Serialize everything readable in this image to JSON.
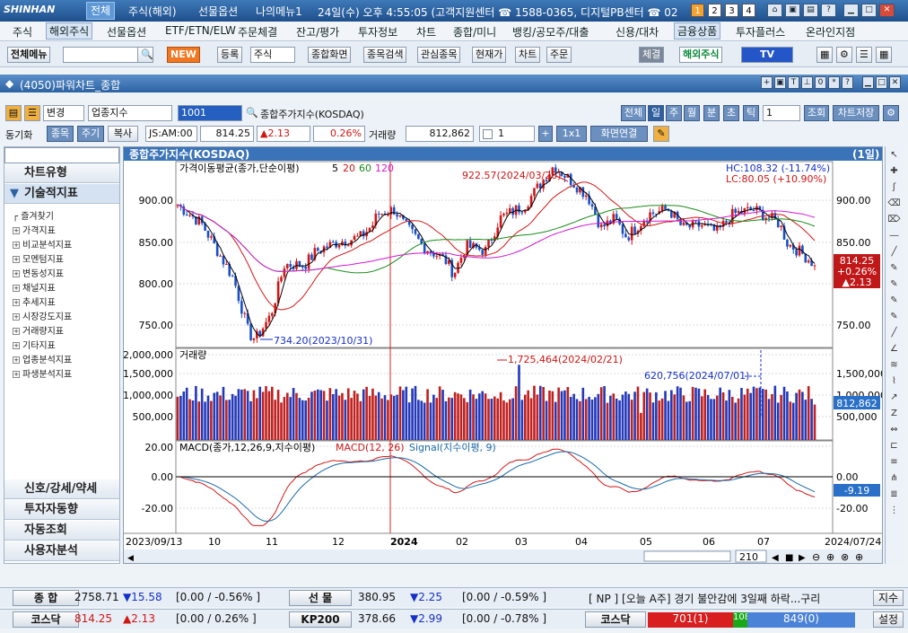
{
  "topbar": {
    "logo": "SHINHAN",
    "menus": [
      "전체",
      "주식(해외)",
      "선물옵션",
      "나의메뉴1"
    ],
    "info": "24일(수) 오후 4:55:05 (고객지원센터 ☎ 1588-0365, 디지털PB센터 ☎ 02",
    "num_buttons": [
      "1",
      "2",
      "3",
      "4"
    ]
  },
  "menubar": [
    "주식",
    "해외주식",
    "선물옵션",
    "ETF/ETN/ELW",
    "주문체결",
    "잔고/평가",
    "투자정보",
    "차트",
    "종합/미니",
    "뱅킹/공모주/대출",
    "신용/대차",
    "금융상품",
    "투자플러스",
    "온라인지점"
  ],
  "toolbar": {
    "all_menu": "전체메뉴",
    "new_badge": "NEW",
    "register": "등록",
    "stock_select": "주식",
    "buttons": [
      "종합화면",
      "종목검색",
      "관심종목",
      "현재가",
      "차트",
      "주문"
    ],
    "fill": "체결",
    "overseas": "해외주식",
    "tv": "TV"
  },
  "window": {
    "title": "(4050)파워차트_종합"
  },
  "chart_toolbar": {
    "change": "변경",
    "sector": "업종지수",
    "code": "1001",
    "name": "종합주가지수(KOSDAQ)",
    "periods": [
      "전체",
      "일",
      "주",
      "월",
      "분",
      "초",
      "틱"
    ],
    "period_value": "1",
    "inquiry": "조회",
    "save": "차트저장"
  },
  "quote_bar": {
    "sync": "동기화",
    "tabs": [
      "종목",
      "주기",
      "복사"
    ],
    "code": "JS:AM:00",
    "price": "814.25",
    "change": "▲2.13",
    "pct": "0.26%",
    "vol_label": "거래량",
    "volume": "812,862",
    "count": "1",
    "plus": "+",
    "layout": "1x1",
    "link": "화면연결"
  },
  "sidebar": {
    "tabs_top": [
      "차트유형",
      "기술적지표"
    ],
    "tree": [
      "즐겨찾기",
      "가격지표",
      "비교분석지표",
      "모멘텀지표",
      "변동성지표",
      "채널지표",
      "추세지표",
      "시장강도지표",
      "거래량지표",
      "기타지표",
      "업종분석지표",
      "파생분석지표"
    ],
    "tabs_bottom": [
      "신호/강세/약세",
      "투자자동향",
      "자동조회",
      "사용자분석"
    ]
  },
  "chart": {
    "header_title": "종합주가지수(KOSDAQ)",
    "header_period": "(1일)",
    "ma_label": "가격이동평균(종가,단순이평)",
    "ma_periods": [
      "5",
      "20",
      "60",
      "120"
    ],
    "ma_colors": [
      "#000000",
      "#d01818",
      "#1a8a1a",
      "#d018d0"
    ],
    "hc": "HC:108.32 (-11.74%)",
    "lc": "LC:80.05 (+10.90%)",
    "high_ann": "922.57(2024/03/26)",
    "low_ann": "734.20(2023/10/31)",
    "price_box": [
      "814.25",
      "+0.26%",
      "▲2.13"
    ],
    "price_ticks": [
      "900.00",
      "850.00",
      "800.00",
      "750.00"
    ],
    "vol_label": "거래량",
    "vol_ann1": "1,725,464(2024/02/21)",
    "vol_ann2": "620,756(2024/07/01)",
    "vol_ticks": [
      "2,000,000",
      "1,500,000",
      "1,000,000",
      "500,000"
    ],
    "vol_box": "812,862",
    "macd_label": "MACD(종가,12,26,9,지수이평)",
    "macd_red": "MACD(12, 26)",
    "macd_blue": "Signal(지수이평, 9)",
    "macd_ticks": [
      "20.00",
      "0.00",
      "-20.00"
    ],
    "macd_box": "-9.19",
    "x_labels": [
      "2023/09/13",
      "10",
      "11",
      "12",
      "2024",
      "02",
      "03",
      "04",
      "05",
      "06",
      "07",
      "2024/07/24"
    ],
    "scroll_value": "210"
  },
  "chart_data": {
    "type": "line",
    "x": [
      "2023/09/13",
      "2023/10",
      "2023/10/31",
      "2023/11",
      "2023/12",
      "2024/01",
      "2024/02",
      "2024/03/26",
      "2024/04",
      "2024/05",
      "2024/06",
      "2024/07",
      "2024/07/24"
    ],
    "series": [
      {
        "name": "종합주가지수(KOSDAQ)",
        "values": [
          880,
          860,
          734.2,
          815,
          840,
          870,
          810,
          922.57,
          880,
          865,
          860,
          855,
          814.25
        ]
      }
    ],
    "ylim": [
      720,
      930
    ]
  },
  "status": {
    "row1": [
      {
        "label": "종 합",
        "value": "2758.71",
        "chg": "▼15.58",
        "rest": "[0.00 / -0.56% ]"
      },
      {
        "label": "선 물",
        "value": "380.95",
        "chg": "▼2.25",
        "rest": "[0.00 / -0.59% ]"
      }
    ],
    "news": "[ NP ] [오늘 A주] 경기 불안감에 3일째 하락...구리",
    "news_btn": "지수",
    "row2": [
      {
        "label": "코스닥",
        "value": "814.25",
        "chg": "▲2.13",
        "rest": "[0.00 / 0.26% ]"
      },
      {
        "label": "KP200",
        "value": "378.66",
        "chg": "▼2.99",
        "rest": "[0.00 / -0.78% ]"
      }
    ],
    "breadth_label": "코스닥",
    "breadth_up": "701(1)",
    "breadth_flat": "108",
    "breadth_down": "849(0)",
    "settings": "설정"
  }
}
